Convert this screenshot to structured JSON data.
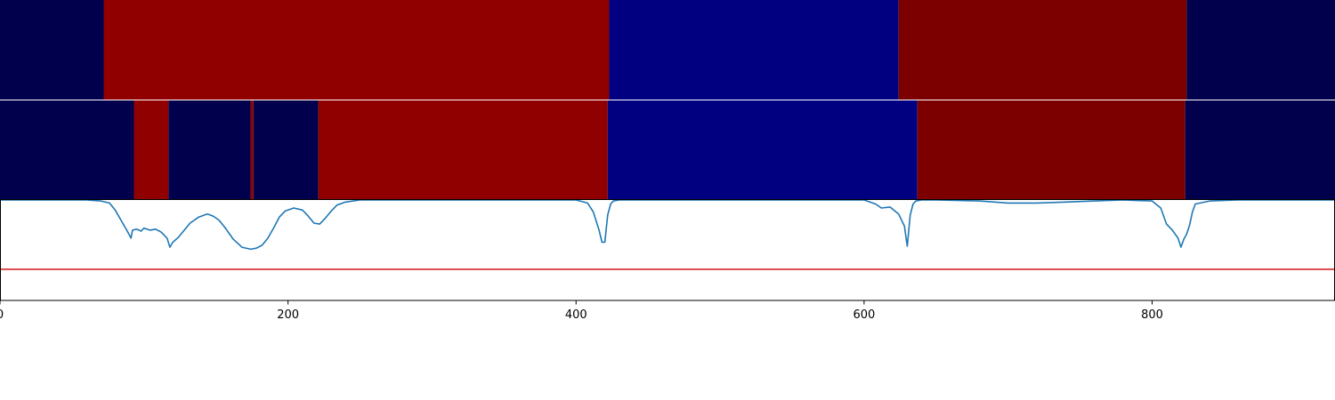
{
  "chart_data": {
    "type": "heatmap",
    "xlim": [
      0,
      927
    ],
    "x_ticks": [
      0,
      200,
      400,
      600,
      800
    ],
    "x_tick_labels": [
      "0",
      "200",
      "400",
      "600",
      "800"
    ],
    "colors": {
      "state_a": "#00004c",
      "state_b": "#910000",
      "state_c": "#000080",
      "state_d": "#7c0000",
      "line": "#1f77b4",
      "threshold": "#d62728"
    },
    "band_top": {
      "segments": [
        {
          "start": 0,
          "end": 72,
          "state": "state_a"
        },
        {
          "start": 72,
          "end": 423,
          "state": "state_b"
        },
        {
          "start": 423,
          "end": 624,
          "state": "state_c"
        },
        {
          "start": 624,
          "end": 824,
          "state": "state_d"
        },
        {
          "start": 824,
          "end": 927,
          "state": "state_a"
        }
      ]
    },
    "band_bottom": {
      "segments": [
        {
          "start": 0,
          "end": 93,
          "state": "state_a"
        },
        {
          "start": 93,
          "end": 117,
          "state": "state_b"
        },
        {
          "start": 117,
          "end": 174,
          "state": "state_a"
        },
        {
          "start": 174,
          "end": 176,
          "state": "state_b"
        },
        {
          "start": 176,
          "end": 221,
          "state": "state_a"
        },
        {
          "start": 221,
          "end": 422,
          "state": "state_b"
        },
        {
          "start": 422,
          "end": 637,
          "state": "state_c"
        },
        {
          "start": 637,
          "end": 823,
          "state": "state_d"
        },
        {
          "start": 823,
          "end": 927,
          "state": "state_a"
        }
      ]
    },
    "line_panel": {
      "ylim": [
        0,
        1
      ],
      "threshold": 0.31,
      "series": [
        {
          "x": [
            0,
            60,
            70,
            76,
            80,
            84,
            88,
            91,
            92,
            95,
            98,
            100,
            104,
            108,
            112,
            116,
            118,
            120,
            124,
            128,
            132,
            138,
            144,
            148,
            152,
            156,
            162,
            168,
            174,
            178,
            182,
            186,
            190,
            194,
            198,
            204,
            210,
            214,
            218,
            222,
            226,
            230,
            234,
            240,
            250,
            270,
            300,
            350,
            400,
            408,
            412,
            416,
            418,
            420,
            422,
            424,
            426,
            430,
            440,
            460,
            500,
            560,
            600,
            608,
            612,
            618,
            624,
            628,
            630,
            632,
            634,
            636,
            640,
            650,
            680,
            700,
            720,
            740,
            760,
            780,
            800,
            806,
            810,
            814,
            818,
            820,
            822,
            824,
            826,
            828,
            830,
            840,
            860,
            927
          ],
          "y": [
            1.0,
            1.0,
            0.99,
            0.97,
            0.9,
            0.8,
            0.7,
            0.62,
            0.7,
            0.71,
            0.69,
            0.72,
            0.7,
            0.71,
            0.68,
            0.62,
            0.53,
            0.58,
            0.63,
            0.7,
            0.77,
            0.83,
            0.86,
            0.84,
            0.8,
            0.73,
            0.61,
            0.53,
            0.51,
            0.52,
            0.55,
            0.62,
            0.72,
            0.83,
            0.89,
            0.92,
            0.9,
            0.84,
            0.77,
            0.76,
            0.82,
            0.89,
            0.95,
            0.98,
            1.0,
            1.0,
            1.0,
            1.0,
            1.0,
            0.97,
            0.88,
            0.7,
            0.58,
            0.58,
            0.85,
            0.96,
            0.99,
            1.0,
            1.0,
            1.0,
            1.0,
            1.0,
            1.0,
            0.96,
            0.92,
            0.93,
            0.86,
            0.74,
            0.54,
            0.85,
            0.96,
            0.99,
            1.0,
            1.0,
            0.99,
            0.97,
            0.97,
            0.98,
            0.99,
            1.0,
            0.99,
            0.92,
            0.76,
            0.7,
            0.62,
            0.53,
            0.61,
            0.66,
            0.75,
            0.88,
            0.96,
            0.99,
            1.0,
            1.0
          ]
        }
      ]
    }
  }
}
